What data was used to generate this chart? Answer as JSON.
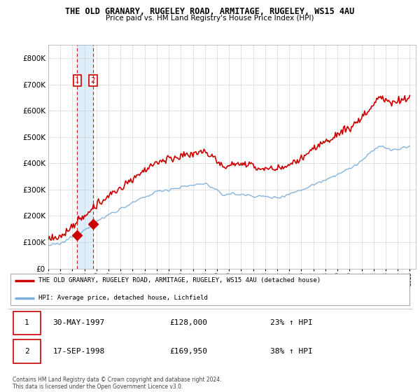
{
  "title1": "THE OLD GRANARY, RUGELEY ROAD, ARMITAGE, RUGELEY, WS15 4AU",
  "title2": "Price paid vs. HM Land Registry's House Price Index (HPI)",
  "legend_red": "THE OLD GRANARY, RUGELEY ROAD, ARMITAGE, RUGELEY, WS15 4AU (detached house)",
  "legend_blue": "HPI: Average price, detached house, Lichfield",
  "sale1_date": "30-MAY-1997",
  "sale1_price": 128000,
  "sale1_hpi_pct": "23% ↑ HPI",
  "sale1_x": 1997.41,
  "sale2_date": "17-SEP-1998",
  "sale2_price": 169950,
  "sale2_hpi_pct": "38% ↑ HPI",
  "sale2_x": 1998.71,
  "red_color": "#cc0000",
  "blue_color": "#7aaddb",
  "shade_color": "#d0e8f8",
  "dashed_color": "#cc0000",
  "grid_color": "#cccccc",
  "ylim": [
    0,
    850000
  ],
  "xlim": [
    1995.0,
    2025.5
  ],
  "yticks": [
    0,
    100000,
    200000,
    300000,
    400000,
    500000,
    600000,
    700000,
    800000
  ],
  "copyright": "Contains HM Land Registry data © Crown copyright and database right 2024.\nThis data is licensed under the Open Government Licence v3.0."
}
